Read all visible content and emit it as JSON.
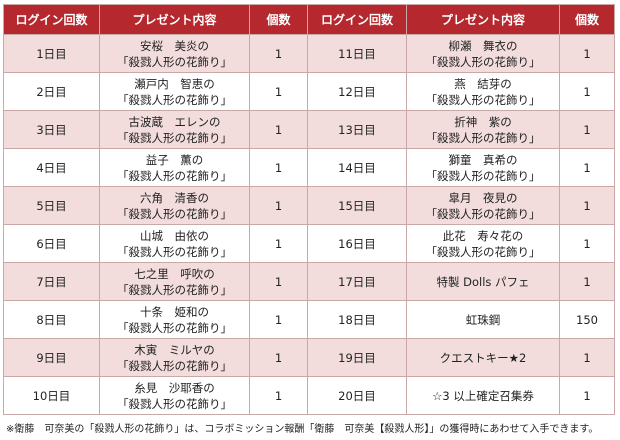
{
  "headers": {
    "day": "ログイン回数",
    "gift": "プレゼント内容",
    "count": "個数"
  },
  "rows": [
    {
      "l_day": "1日目",
      "l_gift1": "安桜　美炎の",
      "l_gift2": "「殺戮人形の花飾り」",
      "l_count": "1",
      "r_day": "11日目",
      "r_gift1": "柳瀬　舞衣の",
      "r_gift2": "「殺戮人形の花飾り」",
      "r_count": "1"
    },
    {
      "l_day": "2日目",
      "l_gift1": "瀬戸内　智恵の",
      "l_gift2": "「殺戮人形の花飾り」",
      "l_count": "1",
      "r_day": "12日目",
      "r_gift1": "燕　結芽の",
      "r_gift2": "「殺戮人形の花飾り」",
      "r_count": "1"
    },
    {
      "l_day": "3日目",
      "l_gift1": "古波蔵　エレンの",
      "l_gift2": "「殺戮人形の花飾り」",
      "l_count": "1",
      "r_day": "13日目",
      "r_gift1": "折神　紫の",
      "r_gift2": "「殺戮人形の花飾り」",
      "r_count": "1"
    },
    {
      "l_day": "4日目",
      "l_gift1": "益子　薫の",
      "l_gift2": "「殺戮人形の花飾り」",
      "l_count": "1",
      "r_day": "14日目",
      "r_gift1": "獅童　真希の",
      "r_gift2": "「殺戮人形の花飾り」",
      "r_count": "1"
    },
    {
      "l_day": "5日目",
      "l_gift1": "六角　清香の",
      "l_gift2": "「殺戮人形の花飾り」",
      "l_count": "1",
      "r_day": "15日目",
      "r_gift1": "皐月　夜見の",
      "r_gift2": "「殺戮人形の花飾り」",
      "r_count": "1"
    },
    {
      "l_day": "6日目",
      "l_gift1": "山城　由依の",
      "l_gift2": "「殺戮人形の花飾り」",
      "l_count": "1",
      "r_day": "16日目",
      "r_gift1": "此花　寿々花の",
      "r_gift2": "「殺戮人形の花飾り」",
      "r_count": "1"
    },
    {
      "l_day": "7日目",
      "l_gift1": "七之里　呼吹の",
      "l_gift2": "「殺戮人形の花飾り」",
      "l_count": "1",
      "r_day": "17日目",
      "r_gift1": "特製 Dolls パフェ",
      "r_gift2": "",
      "r_count": "1"
    },
    {
      "l_day": "8日目",
      "l_gift1": "十条　姫和の",
      "l_gift2": "「殺戮人形の花飾り」",
      "l_count": "1",
      "r_day": "18日目",
      "r_gift1": "虹珠鋼",
      "r_gift2": "",
      "r_count": "150"
    },
    {
      "l_day": "9日目",
      "l_gift1": "木寅　ミルヤの",
      "l_gift2": "「殺戮人形の花飾り」",
      "l_count": "1",
      "r_day": "19日目",
      "r_gift1": "クエストキー★2",
      "r_gift2": "",
      "r_count": "1"
    },
    {
      "l_day": "10日目",
      "l_gift1": "糸見　沙耶香の",
      "l_gift2": "「殺戮人形の花飾り」",
      "l_count": "1",
      "r_day": "20日目",
      "r_gift1": "☆3 以上確定召集券",
      "r_gift2": "",
      "r_count": "1"
    }
  ],
  "note": "※衛藤　可奈美の「殺戮人形の花飾り」は、コラボミッション報酬「衛藤　可奈美【殺戮人形】」の獲得時にあわせて入手できます。",
  "colors": {
    "header_bg": "#b5282e",
    "row_alt": "#f2dcdc",
    "border": "#c9a8a8"
  }
}
